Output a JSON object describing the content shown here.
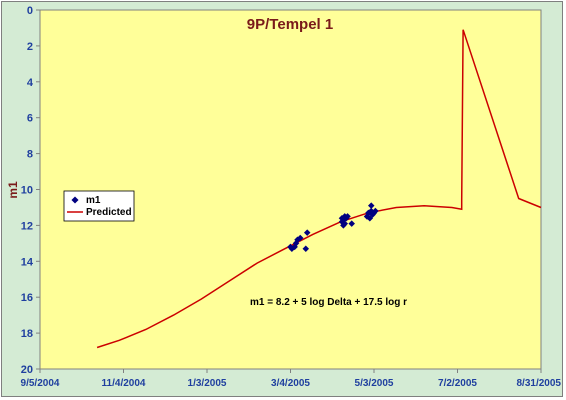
{
  "chart_data": {
    "type": "scatter",
    "title": "9P/Tempel 1",
    "xlabel": "",
    "ylabel": "m1",
    "x_ticks": [
      "9/5/2004",
      "11/4/2004",
      "1/3/2005",
      "3/4/2005",
      "5/3/2005",
      "7/2/2005",
      "8/31/2005"
    ],
    "xlim": [
      "2004-09-05",
      "2005-08-31"
    ],
    "ylim": [
      20,
      0
    ],
    "y_inverted": true,
    "y_ticks": [
      0,
      2,
      4,
      6,
      8,
      10,
      12,
      14,
      16,
      18,
      20
    ],
    "grid": false,
    "legend_position": "left",
    "colors": {
      "plot_background": "#ffff99",
      "chart_background": "#d4ebd4",
      "m1_points": "#000080",
      "predicted_line": "#cc0000",
      "title": "#7a1a1a",
      "ticks": "#1f3f9f"
    },
    "annotation": "m1 = 8.2 + 5 log Delta + 17.5 log r",
    "series": [
      {
        "name": "m1",
        "type": "scatter",
        "points": [
          {
            "x": "2005-03-04",
            "y": 13.2
          },
          {
            "x": "2005-03-05",
            "y": 13.3
          },
          {
            "x": "2005-03-07",
            "y": 13.2
          },
          {
            "x": "2005-03-08",
            "y": 13.0
          },
          {
            "x": "2005-03-09",
            "y": 12.8
          },
          {
            "x": "2005-03-11",
            "y": 12.7
          },
          {
            "x": "2005-03-15",
            "y": 13.3
          },
          {
            "x": "2005-03-16",
            "y": 12.4
          },
          {
            "x": "2005-04-10",
            "y": 11.6
          },
          {
            "x": "2005-04-10",
            "y": 11.8
          },
          {
            "x": "2005-04-11",
            "y": 12.0
          },
          {
            "x": "2005-04-11",
            "y": 11.7
          },
          {
            "x": "2005-04-12",
            "y": 11.5
          },
          {
            "x": "2005-04-12",
            "y": 11.9
          },
          {
            "x": "2005-04-13",
            "y": 11.6
          },
          {
            "x": "2005-04-14",
            "y": 11.5
          },
          {
            "x": "2005-04-17",
            "y": 11.9
          },
          {
            "x": "2005-04-28",
            "y": 11.5
          },
          {
            "x": "2005-04-29",
            "y": 11.3
          },
          {
            "x": "2005-04-30",
            "y": 11.6
          },
          {
            "x": "2005-05-01",
            "y": 11.2
          },
          {
            "x": "2005-05-01",
            "y": 10.9
          },
          {
            "x": "2005-05-02",
            "y": 11.4
          },
          {
            "x": "2005-05-03",
            "y": 11.3
          },
          {
            "x": "2005-05-04",
            "y": 11.2
          }
        ]
      },
      {
        "name": "Predicted",
        "type": "line",
        "points": [
          {
            "x": "2004-10-16",
            "y": 18.8
          },
          {
            "x": "2004-11-01",
            "y": 18.4
          },
          {
            "x": "2004-11-20",
            "y": 17.8
          },
          {
            "x": "2004-12-10",
            "y": 17.0
          },
          {
            "x": "2004-12-30",
            "y": 16.1
          },
          {
            "x": "2005-01-19",
            "y": 15.1
          },
          {
            "x": "2005-02-08",
            "y": 14.1
          },
          {
            "x": "2005-02-28",
            "y": 13.3
          },
          {
            "x": "2005-03-20",
            "y": 12.5
          },
          {
            "x": "2005-04-09",
            "y": 11.8
          },
          {
            "x": "2005-04-29",
            "y": 11.3
          },
          {
            "x": "2005-05-19",
            "y": 11.0
          },
          {
            "x": "2005-06-08",
            "y": 10.9
          },
          {
            "x": "2005-06-28",
            "y": 11.0
          },
          {
            "x": "2005-07-05",
            "y": 11.1
          },
          {
            "x": "2005-07-05",
            "y": 10.6
          },
          {
            "x": "2005-07-06",
            "y": 1.1
          },
          {
            "x": "2005-08-15",
            "y": 10.5
          },
          {
            "x": "2005-08-31",
            "y": 11.0
          }
        ]
      }
    ]
  }
}
